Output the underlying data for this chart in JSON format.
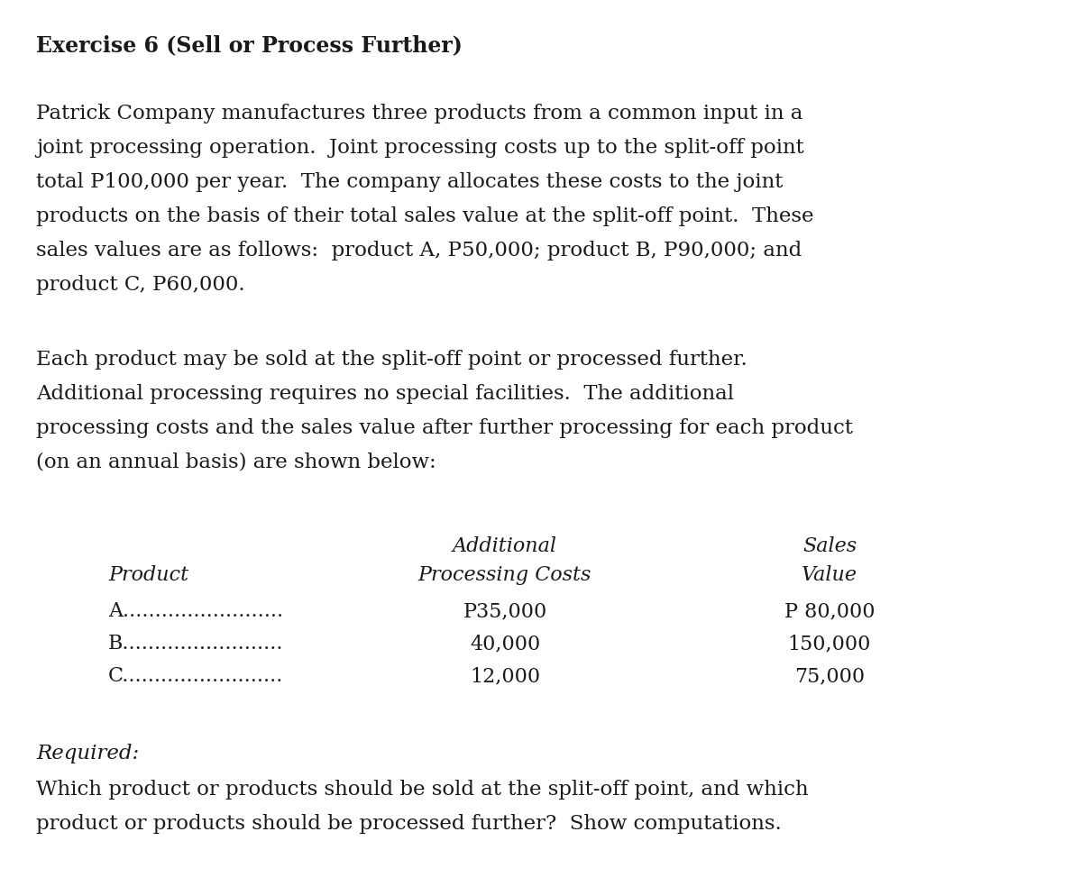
{
  "background_color": "#ffffff",
  "title": "Exercise 6 (Sell or Process Further)",
  "para1_lines": [
    "Patrick Company manufactures three products from a common input in a",
    "joint processing operation.  Joint processing costs up to the split-off point",
    "total P100,000 per year.  The company allocates these costs to the joint",
    "products on the basis of their total sales value at the split-off point.  These",
    "sales values are as follows:  product A, P50,000; product B, P90,000; and",
    "product C, P60,000."
  ],
  "para2_lines": [
    "Each product may be sold at the split-off point or processed further.",
    "Additional processing requires no special facilities.  The additional",
    "processing costs and the sales value after further processing for each product",
    "(on an annual basis) are shown below:"
  ],
  "col1_header": "Product",
  "col2_header_line1": "Additional",
  "col2_header_line2": "Processing Costs",
  "col3_header_line1": "Sales",
  "col3_header_line2": "Value",
  "products": [
    "A.........................",
    "B.........................",
    "C........................."
  ],
  "processing_costs": [
    "P35,000",
    "40,000",
    "12,000"
  ],
  "sales_values": [
    "P 80,000",
    "150,000",
    "75,000"
  ],
  "required_label": "Required:",
  "required_lines": [
    "Which product or products should be sold at the split-off point, and which",
    "product or products should be processed further?  Show computations."
  ],
  "text_color": "#1a1a1a",
  "font_size_title": 17,
  "font_size_body": 16.5,
  "font_size_table": 16
}
